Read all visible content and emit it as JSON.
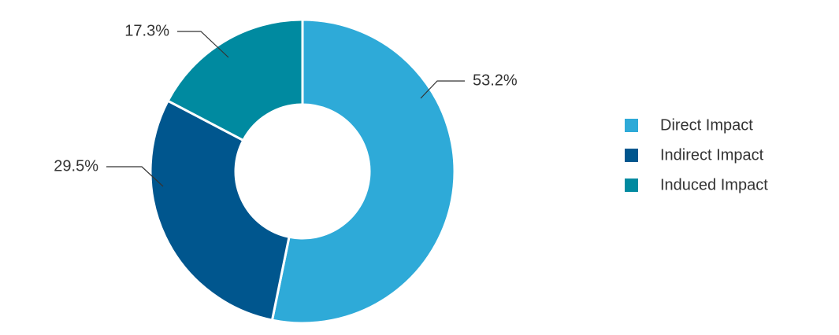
{
  "chart_data": {
    "type": "donut",
    "series": [
      {
        "name": "Direct Impact",
        "color": "#2eaad8",
        "value": 53.2,
        "value_label": "53.2%"
      },
      {
        "name": "Indirect Impact",
        "color": "#00568e",
        "value": 29.5,
        "value_label": "29.5%"
      },
      {
        "name": "Induced Impact",
        "color": "#008aa0",
        "value": 17.3,
        "value_label": "17.3%"
      }
    ],
    "legend": "right"
  }
}
